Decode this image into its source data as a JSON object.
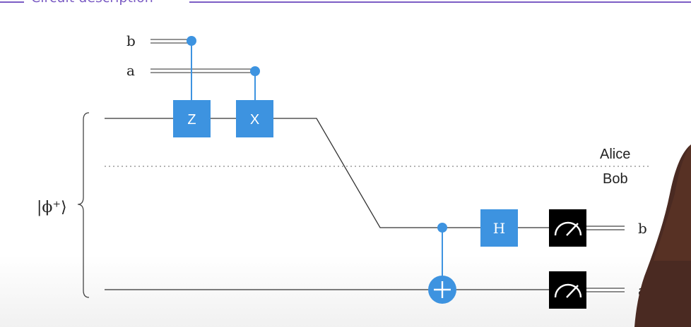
{
  "header": {
    "title": "Circuit description"
  },
  "circuit": {
    "classical_inputs": [
      "b",
      "a"
    ],
    "state_label": "|ϕ⁺⟩",
    "gates": [
      {
        "name": "z-gate",
        "symbol": "Z"
      },
      {
        "name": "x-gate",
        "symbol": "X"
      },
      {
        "name": "h-gate",
        "symbol": "H"
      }
    ],
    "divider": {
      "upper": "Alice",
      "lower": "Bob"
    },
    "outputs": [
      "b",
      "a"
    ]
  },
  "colors": {
    "gate_blue": "#3d93e0",
    "accent_purple": "#7b5cc4",
    "wire": "#333333",
    "meter_bg": "#000000"
  },
  "icons": [
    "meter-icon",
    "meter-icon",
    "target-plus-icon",
    "control-dot-icon"
  ]
}
